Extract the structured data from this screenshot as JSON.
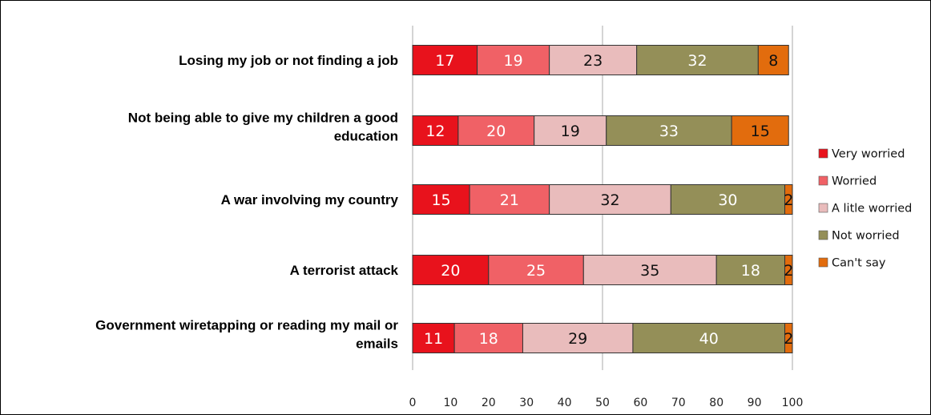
{
  "chart_data": {
    "type": "bar",
    "orientation": "horizontal",
    "stacked": true,
    "categories": [
      [
        "Losing my job or not finding a job"
      ],
      [
        "Not being able to give my children a good",
        "education"
      ],
      [
        "A war involving my country"
      ],
      [
        "A terrorist attack"
      ],
      [
        "Government wiretapping or reading my mail or",
        "emails"
      ]
    ],
    "series": [
      {
        "name": "Very worried",
        "color": "#e8121c",
        "text_color": "#ffffff",
        "values": [
          17,
          12,
          15,
          20,
          11
        ]
      },
      {
        "name": "Worried",
        "color": "#f06166",
        "text_color": "#ffffff",
        "values": [
          19,
          20,
          21,
          25,
          18
        ]
      },
      {
        "name": "A litle worried",
        "color": "#e9bcbc",
        "text_color": "#111111",
        "values": [
          23,
          19,
          32,
          35,
          29
        ]
      },
      {
        "name": "Not worried",
        "color": "#948f58",
        "text_color": "#ffffff",
        "values": [
          32,
          33,
          30,
          18,
          40
        ]
      },
      {
        "name": "Can't say",
        "color": "#e26c0d",
        "text_color": "#111111",
        "values": [
          8,
          15,
          2,
          2,
          2
        ]
      }
    ],
    "xlim": [
      0,
      100
    ],
    "xticks": [
      0,
      10,
      20,
      30,
      40,
      50,
      60,
      70,
      80,
      90,
      100
    ],
    "gridlines_at": [
      0,
      50,
      100
    ],
    "legend_position": "right",
    "title": "",
    "xlabel": "",
    "ylabel": ""
  }
}
